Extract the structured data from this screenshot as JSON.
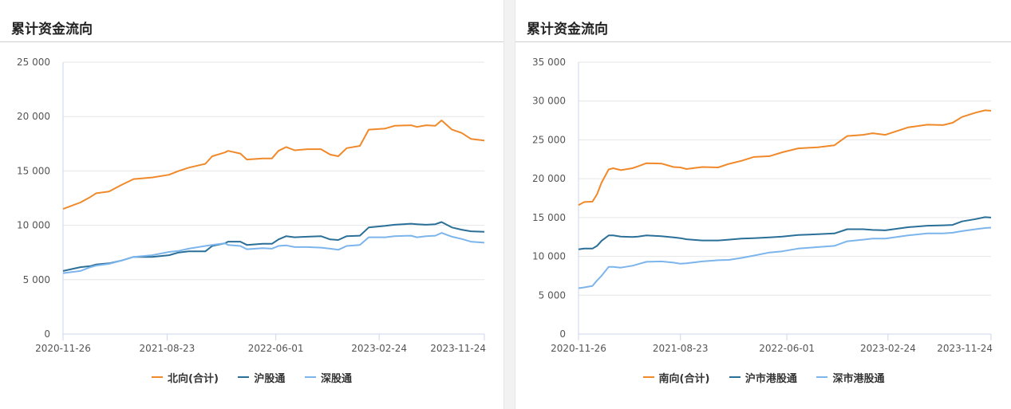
{
  "colors": {
    "orange": "#f0892a",
    "dark_blue": "#2a6f97",
    "light_blue": "#7cb5ec"
  },
  "chart_data": [
    {
      "type": "line",
      "title": "累计资金流向",
      "xlim": [
        "2020-11-26",
        "2023-11-24"
      ],
      "ylim": [
        0,
        25000
      ],
      "yticks": [
        0,
        5000,
        10000,
        15000,
        20000,
        25000
      ],
      "ytick_labels": [
        "0",
        "5 000",
        "10 000",
        "15 000",
        "20 000",
        "25 000"
      ],
      "xtick_labels": [
        "2020-11-26",
        "2021-08-23",
        "2022-06-01",
        "2023-02-24",
        "2023-11-24"
      ],
      "grid": true,
      "legend": "bottom",
      "x": [
        "2020-11-26",
        "2021-01-10",
        "2021-02-05",
        "2021-02-20",
        "2021-03-25",
        "2021-04-26",
        "2021-05-28",
        "2021-07-15",
        "2021-08-28",
        "2021-09-22",
        "2021-10-18",
        "2021-11-30",
        "2021-12-18",
        "2022-01-20",
        "2022-01-28",
        "2022-03-01",
        "2022-03-18",
        "2022-04-28",
        "2022-05-22",
        "2022-06-08",
        "2022-06-28",
        "2022-07-20",
        "2022-08-22",
        "2022-09-26",
        "2022-10-20",
        "2022-11-10",
        "2022-12-02",
        "2023-01-05",
        "2023-01-28",
        "2023-03-12",
        "2023-04-05",
        "2023-05-18",
        "2023-06-02",
        "2023-06-26",
        "2023-07-20",
        "2023-08-05",
        "2023-09-01",
        "2023-09-26",
        "2023-10-20",
        "2023-11-24"
      ],
      "series": [
        {
          "name": "北向(合计)",
          "color": "#f0892a",
          "values": [
            11500,
            12100,
            12600,
            12950,
            13100,
            13700,
            14250,
            14400,
            14650,
            15000,
            15300,
            15650,
            16350,
            16700,
            16850,
            16600,
            16050,
            16150,
            16150,
            16850,
            17200,
            16900,
            17000,
            17000,
            16500,
            16350,
            17100,
            17300,
            18800,
            18900,
            19150,
            19200,
            19050,
            19200,
            19150,
            19650,
            18800,
            18500,
            17950,
            17800
          ]
        },
        {
          "name": "沪股通",
          "color": "#2a6f97",
          "values": [
            5800,
            6150,
            6250,
            6400,
            6500,
            6750,
            7100,
            7100,
            7250,
            7500,
            7600,
            7600,
            8100,
            8350,
            8500,
            8500,
            8200,
            8300,
            8300,
            8700,
            9000,
            8900,
            8950,
            9000,
            8700,
            8650,
            9000,
            9050,
            9800,
            9950,
            10050,
            10150,
            10100,
            10050,
            10100,
            10300,
            9800,
            9600,
            9450,
            9400
          ]
        },
        {
          "name": "深股通",
          "color": "#7cb5ec",
          "values": [
            5600,
            5800,
            6150,
            6300,
            6450,
            6750,
            7100,
            7250,
            7550,
            7650,
            7850,
            8100,
            8200,
            8350,
            8200,
            8100,
            7800,
            7900,
            7850,
            8100,
            8150,
            8000,
            8000,
            7950,
            7850,
            7750,
            8100,
            8200,
            8900,
            8900,
            9000,
            9050,
            8900,
            9000,
            9050,
            9300,
            8950,
            8750,
            8500,
            8400
          ]
        }
      ]
    },
    {
      "type": "line",
      "title": "累计资金流向",
      "xlim": [
        "2020-11-26",
        "2023-11-24"
      ],
      "ylim": [
        0,
        35000
      ],
      "yticks": [
        0,
        5000,
        10000,
        15000,
        20000,
        25000,
        30000,
        35000
      ],
      "ytick_labels": [
        "0",
        "5 000",
        "10 000",
        "15 000",
        "20 000",
        "25 000",
        "30 000",
        "35 000"
      ],
      "xtick_labels": [
        "2020-11-26",
        "2021-08-23",
        "2022-06-01",
        "2023-02-24",
        "2023-11-24"
      ],
      "grid": true,
      "legend": "bottom",
      "x": [
        "2020-11-26",
        "2020-12-11",
        "2021-01-02",
        "2021-01-14",
        "2021-01-26",
        "2021-02-14",
        "2021-02-26",
        "2021-03-18",
        "2021-04-18",
        "2021-05-03",
        "2021-05-25",
        "2021-07-03",
        "2021-08-05",
        "2021-08-23",
        "2021-09-08",
        "2021-10-20",
        "2021-12-01",
        "2021-12-29",
        "2022-02-01",
        "2022-03-05",
        "2022-04-16",
        "2022-05-20",
        "2022-07-01",
        "2022-08-22",
        "2022-10-05",
        "2022-11-08",
        "2022-12-20",
        "2023-01-14",
        "2023-02-17",
        "2023-04-18",
        "2023-06-08",
        "2023-07-20",
        "2023-08-14",
        "2023-09-08",
        "2023-10-14",
        "2023-11-08",
        "2023-11-24"
      ],
      "series": [
        {
          "name": "南向(合计)",
          "color": "#f0892a",
          "values": [
            16600,
            17000,
            17050,
            18000,
            19500,
            21200,
            21350,
            21100,
            21350,
            21600,
            22000,
            21950,
            21500,
            21450,
            21250,
            21500,
            21450,
            21900,
            22300,
            22800,
            22900,
            23400,
            23900,
            24050,
            24300,
            25500,
            25650,
            25850,
            25650,
            26600,
            26950,
            26900,
            27200,
            27950,
            28500,
            28800,
            28750
          ]
        },
        {
          "name": "沪市港股通",
          "color": "#2a6f97",
          "values": [
            10900,
            11000,
            11000,
            11350,
            12000,
            12700,
            12700,
            12550,
            12500,
            12550,
            12700,
            12600,
            12450,
            12350,
            12200,
            12050,
            12050,
            12150,
            12300,
            12350,
            12450,
            12550,
            12750,
            12850,
            12950,
            13500,
            13500,
            13400,
            13350,
            13750,
            13950,
            14000,
            14050,
            14500,
            14800,
            15050,
            15000
          ]
        },
        {
          "name": "深市港股通",
          "color": "#7cb5ec",
          "values": [
            5900,
            6000,
            6200,
            6900,
            7500,
            8650,
            8650,
            8550,
            8800,
            9000,
            9300,
            9350,
            9200,
            9050,
            9100,
            9350,
            9500,
            9550,
            9800,
            10100,
            10500,
            10650,
            11000,
            11200,
            11350,
            11950,
            12150,
            12300,
            12300,
            12700,
            12950,
            12950,
            13050,
            13250,
            13500,
            13650,
            13700
          ]
        }
      ]
    }
  ]
}
